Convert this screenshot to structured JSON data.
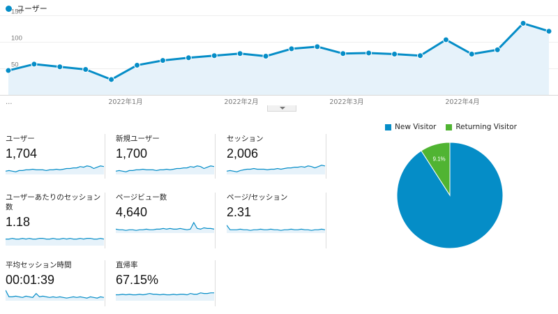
{
  "legend_top": {
    "label": "ユーザー",
    "color": "#058dc7"
  },
  "main_chart": {
    "y_ticks": [
      "150",
      "100",
      "50"
    ],
    "x_labels": [
      "…",
      "2022年1月",
      "2022年2月",
      "2022年3月",
      "2022年4月"
    ],
    "series_color": "#058dc7",
    "fill_color": "#e6f2fa"
  },
  "chart_data": [
    {
      "type": "line",
      "title": "",
      "series": [
        {
          "name": "ユーザー",
          "values": [
            46,
            58,
            53,
            48,
            29,
            56,
            65,
            70,
            74,
            78,
            73,
            87,
            91,
            78,
            79,
            77,
            74,
            104,
            77,
            85,
            135,
            120
          ]
        }
      ],
      "ylim": [
        0,
        150
      ],
      "y_ticks": [
        50,
        100,
        150
      ],
      "x_tick_labels": [
        "2022年1月",
        "2022年2月",
        "2022年3月",
        "2022年4月"
      ],
      "grid": true
    },
    {
      "type": "pie",
      "categories": [
        "New Visitor",
        "Returning Visitor"
      ],
      "values": [
        90.9,
        9.1
      ],
      "labels": [
        "90.9%",
        "9.1%"
      ],
      "colors": [
        "#058dc7",
        "#50b432"
      ],
      "legend": "top"
    }
  ],
  "metrics": [
    {
      "label": "ユーザー",
      "value": "1,704",
      "spark": [
        5,
        6,
        5,
        4,
        6,
        6,
        7,
        7,
        8,
        7,
        7,
        7,
        6,
        7,
        7,
        8,
        7,
        8,
        9,
        9,
        10,
        10,
        12,
        11,
        13,
        12,
        9,
        11,
        13,
        12
      ]
    },
    {
      "label": "新規ユーザー",
      "value": "1,700",
      "spark": [
        5,
        6,
        5,
        4,
        6,
        6,
        7,
        7,
        8,
        7,
        7,
        7,
        6,
        7,
        7,
        8,
        7,
        8,
        9,
        9,
        10,
        10,
        12,
        11,
        13,
        12,
        9,
        11,
        13,
        12
      ]
    },
    {
      "label": "セッション",
      "value": "2,006",
      "spark": [
        5,
        6,
        5,
        4,
        6,
        7,
        8,
        8,
        9,
        8,
        8,
        8,
        7,
        8,
        8,
        9,
        8,
        9,
        10,
        10,
        11,
        11,
        12,
        11,
        13,
        12,
        10,
        12,
        14,
        13
      ]
    },
    {
      "label": "ユーザーあたりのセッション数",
      "value": "1.18",
      "spark": [
        10,
        10,
        11,
        10,
        10,
        11,
        10,
        11,
        10,
        10,
        11,
        11,
        10,
        10,
        11,
        10,
        10,
        11,
        10,
        11,
        10,
        10,
        11,
        10,
        11,
        11,
        10,
        10,
        11,
        10
      ]
    },
    {
      "label": "ページビュー数",
      "value": "4,640",
      "spark": [
        6,
        5,
        5,
        4,
        5,
        5,
        4,
        5,
        5,
        6,
        5,
        5,
        6,
        6,
        7,
        6,
        7,
        6,
        6,
        7,
        6,
        5,
        6,
        16,
        7,
        6,
        8,
        7,
        7,
        6
      ]
    },
    {
      "label": "ページ/セッション",
      "value": "2.31",
      "spark": [
        12,
        5,
        5,
        5,
        6,
        5,
        5,
        4,
        5,
        5,
        6,
        5,
        5,
        6,
        5,
        5,
        4,
        5,
        5,
        6,
        5,
        5,
        6,
        5,
        5,
        4,
        5,
        5,
        6,
        5
      ]
    },
    {
      "label": "平均セッション時間",
      "value": "00:01:39",
      "spark": [
        16,
        6,
        6,
        7,
        6,
        5,
        7,
        6,
        5,
        11,
        6,
        7,
        6,
        5,
        6,
        5,
        6,
        5,
        4,
        5,
        6,
        5,
        6,
        5,
        4,
        6,
        5,
        4,
        6,
        5
      ]
    },
    {
      "label": "直帰率",
      "value": "67.15%",
      "spark": [
        9,
        9,
        10,
        9,
        10,
        9,
        9,
        10,
        9,
        10,
        11,
        10,
        10,
        9,
        10,
        9,
        9,
        10,
        9,
        10,
        10,
        9,
        11,
        10,
        10,
        12,
        11,
        11,
        12,
        12
      ]
    }
  ],
  "pie_legend": [
    {
      "label": "New Visitor",
      "color": "#058dc7"
    },
    {
      "label": "Returning Visitor",
      "color": "#50b432"
    }
  ],
  "spark_color": "#058dc7",
  "spark_fill": "#e6f2fa"
}
